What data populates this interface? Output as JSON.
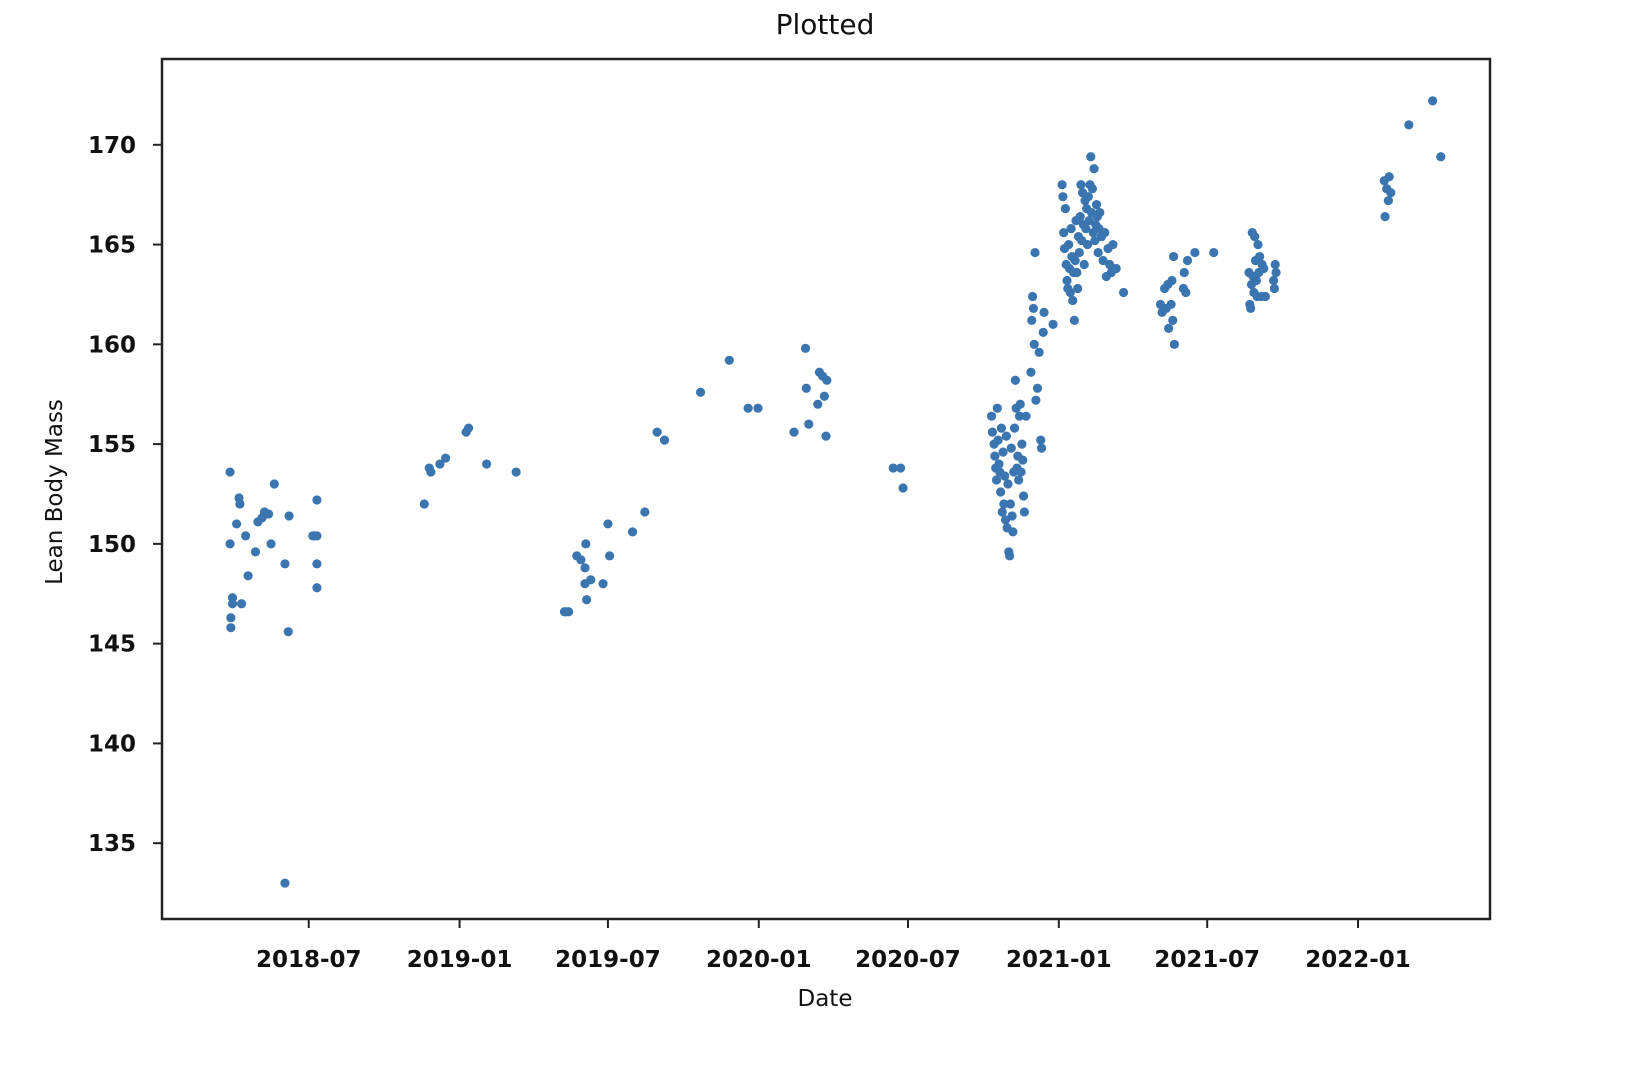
{
  "chart_data": {
    "type": "scatter",
    "title": "Plotted",
    "xlabel": "Date",
    "ylabel": "Lean Body Mass",
    "x_ticks": [
      "2018-07",
      "2019-01",
      "2019-07",
      "2020-01",
      "2020-07",
      "2021-01",
      "2021-07",
      "2022-01"
    ],
    "y_ticks": [
      135,
      140,
      145,
      150,
      155,
      160,
      165,
      170
    ],
    "xlim": [
      "2018-01-03",
      "2022-06-11"
    ],
    "ylim": [
      131.2,
      174.3
    ],
    "grid": false,
    "legend": "none",
    "marker_color": "#3a75b0",
    "series": [
      {
        "points": [
          [
            "2018-03-27",
            153.6
          ],
          [
            "2018-03-27",
            150.0
          ],
          [
            "2018-03-28",
            146.3
          ],
          [
            "2018-03-28",
            145.8
          ],
          [
            "2018-03-30",
            147.3
          ],
          [
            "2018-03-30",
            147.0
          ],
          [
            "2018-04-04",
            151.0
          ],
          [
            "2018-04-07",
            152.3
          ],
          [
            "2018-04-08",
            152.0
          ],
          [
            "2018-04-10",
            147.0
          ],
          [
            "2018-04-15",
            150.4
          ],
          [
            "2018-04-18",
            148.4
          ],
          [
            "2018-04-27",
            149.6
          ],
          [
            "2018-04-30",
            151.1
          ],
          [
            "2018-05-05",
            151.3
          ],
          [
            "2018-05-08",
            151.6
          ],
          [
            "2018-05-13",
            151.5
          ],
          [
            "2018-05-16",
            150.0
          ],
          [
            "2018-05-20",
            153.0
          ],
          [
            "2018-06-02",
            149.0
          ],
          [
            "2018-06-06",
            145.6
          ],
          [
            "2018-06-07",
            151.4
          ],
          [
            "2018-06-02",
            133.0
          ],
          [
            "2018-07-06",
            150.4
          ],
          [
            "2018-07-08",
            150.4
          ],
          [
            "2018-07-11",
            149.0
          ],
          [
            "2018-07-11",
            147.8
          ],
          [
            "2018-07-11",
            152.2
          ],
          [
            "2018-07-11",
            150.4
          ],
          [
            "2018-11-19",
            152.0
          ],
          [
            "2018-11-25",
            153.8
          ],
          [
            "2018-11-27",
            153.6
          ],
          [
            "2018-12-08",
            154.0
          ],
          [
            "2018-12-15",
            154.3
          ],
          [
            "2019-01-09",
            155.6
          ],
          [
            "2019-01-12",
            155.8
          ],
          [
            "2019-02-03",
            154.0
          ],
          [
            "2019-03-11",
            153.6
          ],
          [
            "2019-05-09",
            146.6
          ],
          [
            "2019-05-11",
            146.6
          ],
          [
            "2019-05-14",
            146.6
          ],
          [
            "2019-05-24",
            149.4
          ],
          [
            "2019-05-29",
            149.2
          ],
          [
            "2019-06-03",
            148.8
          ],
          [
            "2019-06-03",
            148.0
          ],
          [
            "2019-06-04",
            150.0
          ],
          [
            "2019-06-05",
            147.2
          ],
          [
            "2019-06-10",
            148.2
          ],
          [
            "2019-06-25",
            148.0
          ],
          [
            "2019-07-01",
            151.0
          ],
          [
            "2019-07-03",
            149.4
          ],
          [
            "2019-07-31",
            150.6
          ],
          [
            "2019-08-15",
            151.6
          ],
          [
            "2019-08-30",
            155.6
          ],
          [
            "2019-09-08",
            155.2
          ],
          [
            "2019-10-22",
            157.6
          ],
          [
            "2019-11-26",
            159.2
          ],
          [
            "2019-12-19",
            156.8
          ],
          [
            "2019-12-31",
            156.8
          ],
          [
            "2020-02-13",
            155.6
          ],
          [
            "2020-02-27",
            159.8
          ],
          [
            "2020-02-28",
            157.8
          ],
          [
            "2020-03-02",
            156.0
          ],
          [
            "2020-03-13",
            157.0
          ],
          [
            "2020-03-15",
            158.6
          ],
          [
            "2020-03-19",
            158.4
          ],
          [
            "2020-03-21",
            157.4
          ],
          [
            "2020-03-23",
            155.4
          ],
          [
            "2020-03-24",
            158.2
          ],
          [
            "2020-06-13",
            153.8
          ],
          [
            "2020-06-22",
            153.8
          ],
          [
            "2020-06-25",
            152.8
          ],
          [
            "2020-10-11",
            156.4
          ],
          [
            "2020-10-12",
            155.6
          ],
          [
            "2020-10-14",
            155.0
          ],
          [
            "2020-10-15",
            154.4
          ],
          [
            "2020-10-16",
            153.8
          ],
          [
            "2020-10-17",
            153.2
          ],
          [
            "2020-10-18",
            156.8
          ],
          [
            "2020-10-19",
            155.2
          ],
          [
            "2020-10-20",
            154.0
          ],
          [
            "2020-10-21",
            153.6
          ],
          [
            "2020-10-22",
            152.6
          ],
          [
            "2020-10-23",
            155.8
          ],
          [
            "2020-10-24",
            151.6
          ],
          [
            "2020-10-25",
            154.6
          ],
          [
            "2020-10-26",
            152.0
          ],
          [
            "2020-10-27",
            153.4
          ],
          [
            "2020-10-28",
            151.2
          ],
          [
            "2020-10-29",
            155.4
          ],
          [
            "2020-10-30",
            150.8
          ],
          [
            "2020-10-31",
            153.0
          ],
          [
            "2020-11-01",
            149.6
          ],
          [
            "2020-11-02",
            149.4
          ],
          [
            "2020-11-03",
            152.0
          ],
          [
            "2020-11-04",
            154.8
          ],
          [
            "2020-11-05",
            151.4
          ],
          [
            "2020-11-06",
            150.6
          ],
          [
            "2020-11-07",
            153.6
          ],
          [
            "2020-11-08",
            155.8
          ],
          [
            "2020-11-09",
            158.2
          ],
          [
            "2020-11-10",
            156.8
          ],
          [
            "2020-11-11",
            153.8
          ],
          [
            "2020-11-12",
            154.4
          ],
          [
            "2020-11-13",
            153.2
          ],
          [
            "2020-11-14",
            156.4
          ],
          [
            "2020-11-15",
            157.0
          ],
          [
            "2020-11-16",
            153.6
          ],
          [
            "2020-11-17",
            155.0
          ],
          [
            "2020-11-18",
            154.2
          ],
          [
            "2020-11-19",
            152.4
          ],
          [
            "2020-11-20",
            151.6
          ],
          [
            "2020-11-22",
            156.4
          ],
          [
            "2020-11-28",
            158.6
          ],
          [
            "2020-11-29",
            161.2
          ],
          [
            "2020-11-30",
            162.4
          ],
          [
            "2020-12-01",
            161.8
          ],
          [
            "2020-12-02",
            160.0
          ],
          [
            "2020-12-03",
            164.6
          ],
          [
            "2020-12-04",
            157.2
          ],
          [
            "2020-12-06",
            157.8
          ],
          [
            "2020-12-08",
            159.6
          ],
          [
            "2020-12-10",
            155.2
          ],
          [
            "2020-12-11",
            154.8
          ],
          [
            "2020-12-13",
            160.6
          ],
          [
            "2020-12-14",
            161.6
          ],
          [
            "2020-12-25",
            161.0
          ],
          [
            "2021-01-05",
            168.0
          ],
          [
            "2021-01-06",
            167.4
          ],
          [
            "2021-01-07",
            165.6
          ],
          [
            "2021-01-08",
            164.8
          ],
          [
            "2021-01-09",
            166.8
          ],
          [
            "2021-01-10",
            164.0
          ],
          [
            "2021-01-11",
            163.2
          ],
          [
            "2021-01-12",
            162.8
          ],
          [
            "2021-01-13",
            165.0
          ],
          [
            "2021-01-14",
            163.8
          ],
          [
            "2021-01-15",
            162.6
          ],
          [
            "2021-01-16",
            165.8
          ],
          [
            "2021-01-17",
            164.4
          ],
          [
            "2021-01-18",
            162.2
          ],
          [
            "2021-01-19",
            163.6
          ],
          [
            "2021-01-20",
            161.2
          ],
          [
            "2021-01-21",
            164.2
          ],
          [
            "2021-01-22",
            166.2
          ],
          [
            "2021-01-23",
            163.6
          ],
          [
            "2021-01-24",
            162.8
          ],
          [
            "2021-01-25",
            165.4
          ],
          [
            "2021-01-26",
            164.6
          ],
          [
            "2021-01-27",
            166.4
          ],
          [
            "2021-01-28",
            168.0
          ],
          [
            "2021-01-29",
            165.2
          ],
          [
            "2021-01-30",
            167.6
          ],
          [
            "2021-01-31",
            166.0
          ],
          [
            "2021-02-01",
            164.0
          ],
          [
            "2021-02-02",
            167.2
          ],
          [
            "2021-02-03",
            165.8
          ],
          [
            "2021-02-04",
            166.8
          ],
          [
            "2021-02-05",
            165.0
          ],
          [
            "2021-02-06",
            167.4
          ],
          [
            "2021-02-07",
            166.2
          ],
          [
            "2021-02-08",
            168.0
          ],
          [
            "2021-02-09",
            169.4
          ],
          [
            "2021-02-10",
            166.6
          ],
          [
            "2021-02-11",
            167.8
          ],
          [
            "2021-02-12",
            165.6
          ],
          [
            "2021-02-13",
            168.8
          ],
          [
            "2021-02-14",
            165.2
          ],
          [
            "2021-02-15",
            166.0
          ],
          [
            "2021-02-16",
            167.0
          ],
          [
            "2021-02-17",
            166.4
          ],
          [
            "2021-02-18",
            164.6
          ],
          [
            "2021-02-19",
            165.8
          ],
          [
            "2021-02-20",
            166.6
          ],
          [
            "2021-02-22",
            165.4
          ],
          [
            "2021-02-24",
            164.2
          ],
          [
            "2021-02-26",
            165.6
          ],
          [
            "2021-02-28",
            163.4
          ],
          [
            "2021-03-02",
            164.8
          ],
          [
            "2021-03-04",
            164.0
          ],
          [
            "2021-03-06",
            163.6
          ],
          [
            "2021-03-08",
            165.0
          ],
          [
            "2021-03-12",
            163.8
          ],
          [
            "2021-03-21",
            162.6
          ],
          [
            "2021-05-05",
            162.0
          ],
          [
            "2021-05-07",
            161.6
          ],
          [
            "2021-05-10",
            162.8
          ],
          [
            "2021-05-12",
            161.8
          ],
          [
            "2021-05-14",
            163.0
          ],
          [
            "2021-05-15",
            160.8
          ],
          [
            "2021-05-18",
            162.0
          ],
          [
            "2021-05-19",
            163.2
          ],
          [
            "2021-05-20",
            161.2
          ],
          [
            "2021-05-21",
            164.4
          ],
          [
            "2021-05-22",
            160.0
          ],
          [
            "2021-06-02",
            162.8
          ],
          [
            "2021-06-03",
            163.6
          ],
          [
            "2021-06-05",
            162.6
          ],
          [
            "2021-06-07",
            164.2
          ],
          [
            "2021-06-16",
            164.6
          ],
          [
            "2021-07-09",
            164.6
          ],
          [
            "2021-08-21",
            163.6
          ],
          [
            "2021-08-22",
            162.0
          ],
          [
            "2021-08-23",
            161.8
          ],
          [
            "2021-08-24",
            163.0
          ],
          [
            "2021-08-25",
            165.6
          ],
          [
            "2021-08-26",
            163.4
          ],
          [
            "2021-08-27",
            162.6
          ],
          [
            "2021-08-28",
            165.4
          ],
          [
            "2021-08-29",
            164.2
          ],
          [
            "2021-08-30",
            163.2
          ],
          [
            "2021-08-31",
            162.4
          ],
          [
            "2021-09-01",
            165.0
          ],
          [
            "2021-09-02",
            163.6
          ],
          [
            "2021-09-03",
            164.4
          ],
          [
            "2021-09-05",
            162.4
          ],
          [
            "2021-09-06",
            164.0
          ],
          [
            "2021-09-08",
            163.8
          ],
          [
            "2021-09-10",
            162.4
          ],
          [
            "2021-09-20",
            163.2
          ],
          [
            "2021-09-21",
            162.8
          ],
          [
            "2021-09-22",
            164.0
          ],
          [
            "2021-09-23",
            163.6
          ],
          [
            "2022-02-02",
            168.2
          ],
          [
            "2022-02-03",
            166.4
          ],
          [
            "2022-02-05",
            167.8
          ],
          [
            "2022-02-07",
            167.2
          ],
          [
            "2022-02-08",
            168.4
          ],
          [
            "2022-02-10",
            167.6
          ],
          [
            "2022-03-04",
            171.0
          ],
          [
            "2022-04-02",
            172.2
          ],
          [
            "2022-04-12",
            169.4
          ]
        ]
      }
    ]
  }
}
